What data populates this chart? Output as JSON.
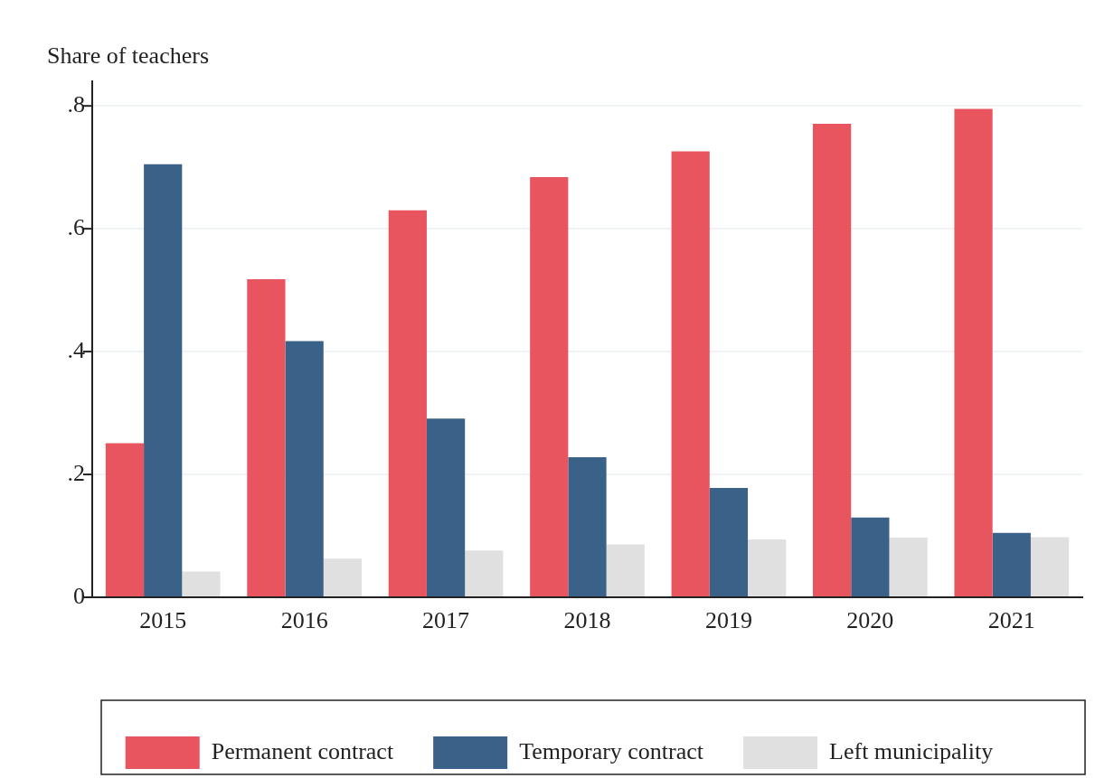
{
  "chart_data": {
    "type": "bar",
    "ylabel": "Share of teachers",
    "categories": [
      "2015",
      "2016",
      "2017",
      "2018",
      "2019",
      "2020",
      "2021"
    ],
    "series": [
      {
        "name": "Permanent contract",
        "color": "#e8555e",
        "values": [
          0.251,
          0.518,
          0.63,
          0.684,
          0.726,
          0.771,
          0.795
        ]
      },
      {
        "name": "Temporary contract",
        "color": "#3a6187",
        "values": [
          0.705,
          0.417,
          0.291,
          0.228,
          0.178,
          0.13,
          0.105
        ]
      },
      {
        "name": "Left municipality",
        "color": "#e0e0e0",
        "values": [
          0.042,
          0.063,
          0.076,
          0.086,
          0.094,
          0.097,
          0.098
        ]
      }
    ],
    "ylim": [
      0,
      0.84
    ],
    "yticks": [
      {
        "value": 0,
        "label": "0"
      },
      {
        "value": 0.2,
        "label": ".2"
      },
      {
        "value": 0.4,
        "label": ".4"
      },
      {
        "value": 0.6,
        "label": ".6"
      },
      {
        "value": 0.8,
        "label": ".8"
      }
    ],
    "grid": "y",
    "legend": "bottom"
  }
}
